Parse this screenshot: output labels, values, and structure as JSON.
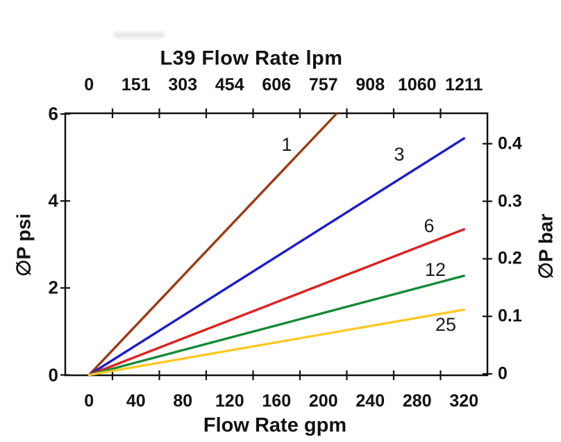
{
  "chart_data": {
    "type": "line",
    "title": "L39 Flow Rate lpm",
    "grid": false,
    "legend": "inline-labels-on-curves",
    "x_axis": {
      "label": "Flow Rate gpm",
      "ticks": [
        "0",
        "40",
        "80",
        "120",
        "160",
        "200",
        "240",
        "280",
        "320"
      ],
      "range_gpm": [
        0,
        360
      ],
      "tick_style": "minor ticks drawn midway between numeric labels"
    },
    "x_top_axis": {
      "label": "L39 Flow Rate lpm",
      "ticks": [
        "0",
        "151",
        "303",
        "454",
        "606",
        "757",
        "908",
        "1060",
        "1211"
      ],
      "unit": "lpm"
    },
    "y_left_axis": {
      "label": "∅P psi",
      "ticks": [
        "0",
        "2",
        "4",
        "6"
      ],
      "range_psi": [
        0,
        6
      ]
    },
    "y_right_axis": {
      "label": "∅P bar",
      "ticks": [
        "0",
        "0.1",
        "0.2",
        "0.3",
        "0.4"
      ],
      "range_bar": [
        0,
        0.45
      ]
    },
    "series": [
      {
        "name": "1",
        "color": "#9c3a10",
        "points_gpm_psi": [
          [
            0,
            0
          ],
          [
            211,
            6.0
          ]
        ]
      },
      {
        "name": "3",
        "color": "#1b1bd0",
        "points_gpm_psi": [
          [
            0,
            0
          ],
          [
            320,
            5.44
          ]
        ]
      },
      {
        "name": "6",
        "color": "#e01f1f",
        "points_gpm_psi": [
          [
            0,
            0
          ],
          [
            320,
            3.35
          ]
        ]
      },
      {
        "name": "12",
        "color": "#168a38",
        "points_gpm_psi": [
          [
            0,
            0
          ],
          [
            320,
            2.28
          ]
        ]
      },
      {
        "name": "25",
        "color": "#ffc926",
        "points_gpm_psi": [
          [
            0,
            0
          ],
          [
            320,
            1.5
          ]
        ]
      }
    ]
  }
}
